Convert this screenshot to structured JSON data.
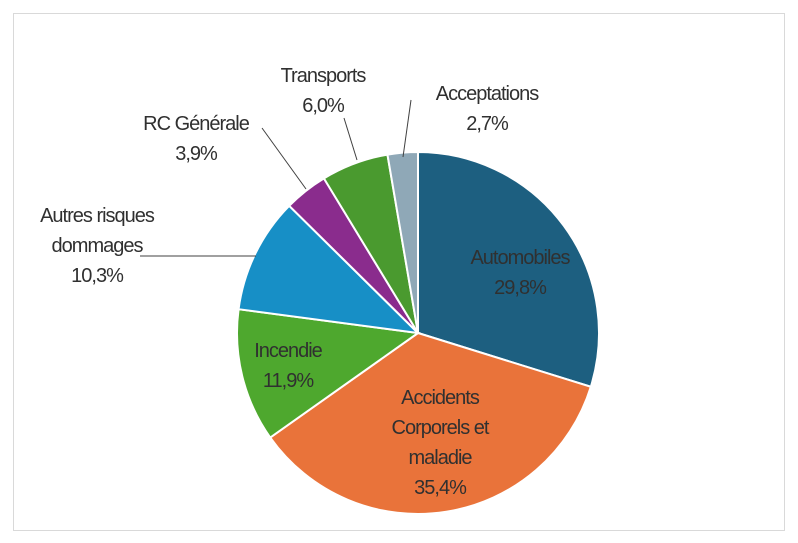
{
  "chart_data": {
    "type": "pie",
    "categories": [
      "Automobiles",
      "Accidents Corporels et maladie",
      "Incendie",
      "Autres risques dommages",
      "RC Générale",
      "Transports",
      "Acceptations"
    ],
    "values": [
      29.8,
      35.4,
      11.9,
      10.3,
      3.9,
      6.0,
      2.7
    ],
    "value_labels": [
      "29,8%",
      "35,4%",
      "11,9%",
      "10,3%",
      "3,9%",
      "6,0%",
      "2,7%"
    ],
    "colors": [
      "#1d5f80",
      "#e9733a",
      "#4ea82e",
      "#178fc6",
      "#8a2c8d",
      "#4a9a2f",
      "#8fa8b7"
    ]
  }
}
